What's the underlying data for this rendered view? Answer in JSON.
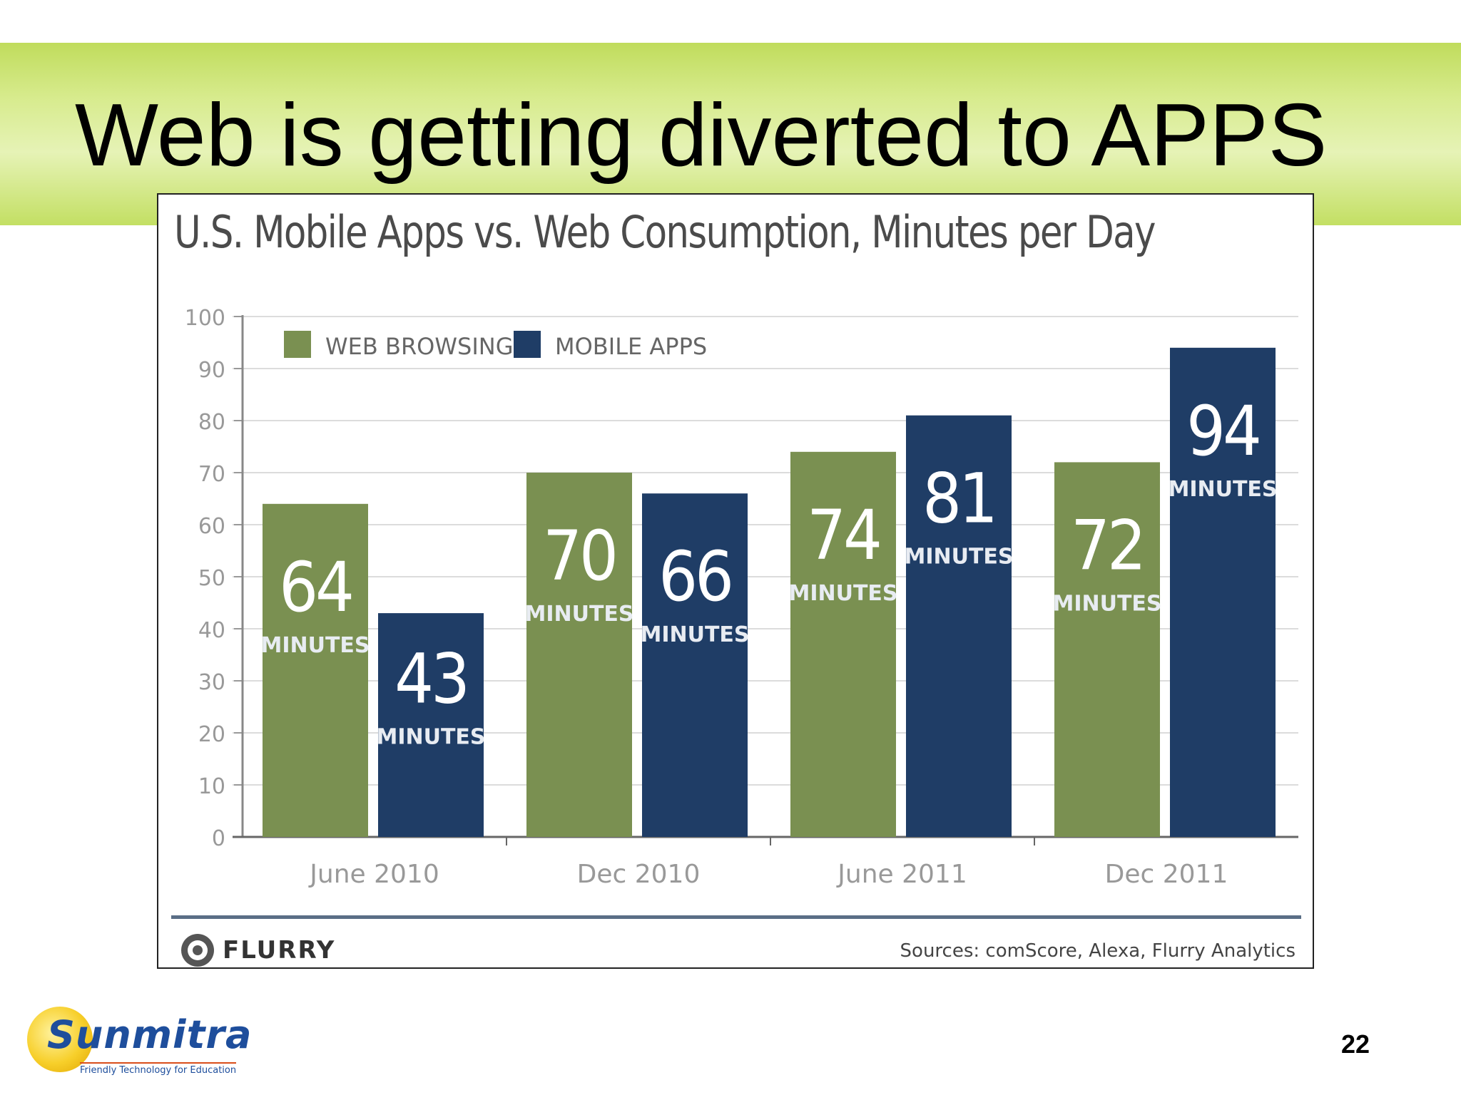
{
  "slide": {
    "title": "Web is getting diverted to APPS",
    "page_number": "22",
    "logo": {
      "name": "Sunmitra",
      "name_first": "Su",
      "name_rest": "nmitra",
      "tagline": "Friendly Technology for Education"
    }
  },
  "chart_footer": {
    "brand": "FLURRY",
    "sources": "Sources: comScore, Alexa, Flurry Analytics"
  },
  "colors": {
    "web": "#7a9051",
    "apps": "#1f3d66",
    "band": "#c6e06a"
  },
  "chart_data": {
    "type": "bar",
    "title": "U.S. Mobile Apps vs. Web Consumption, Minutes per Day",
    "categories": [
      "June 2010",
      "Dec 2010",
      "June 2011",
      "Dec 2011"
    ],
    "series": [
      {
        "name": "WEB BROWSING",
        "values": [
          64,
          70,
          74,
          72
        ],
        "color": "#7a9051"
      },
      {
        "name": "MOBILE APPS",
        "values": [
          43,
          66,
          81,
          94
        ],
        "color": "#1f3d66"
      }
    ],
    "value_unit_label": "MINUTES",
    "y_ticks": [
      0,
      10,
      20,
      30,
      40,
      50,
      60,
      70,
      80,
      90,
      100
    ],
    "ylim": [
      0,
      100
    ],
    "grid": true,
    "legend": "top-left"
  }
}
